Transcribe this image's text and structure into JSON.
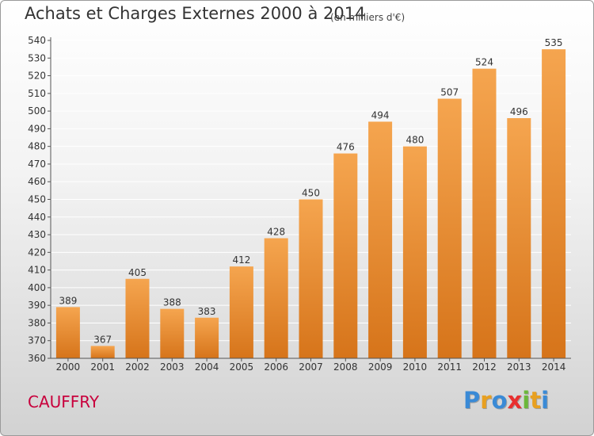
{
  "chart_data": {
    "type": "bar",
    "title": "Achats et Charges Externes 2000 à 2014",
    "subtitle": "(en milliers d'€)",
    "xlabel": "",
    "ylabel": "",
    "categories": [
      "2000",
      "2001",
      "2002",
      "2003",
      "2004",
      "2005",
      "2006",
      "2007",
      "2008",
      "2009",
      "2010",
      "2011",
      "2012",
      "2013",
      "2014"
    ],
    "values": [
      389,
      367,
      405,
      388,
      383,
      412,
      428,
      450,
      476,
      494,
      480,
      507,
      524,
      496,
      535
    ],
    "data_labels": [
      "389",
      "367",
      "405",
      "388",
      "383",
      "412",
      "428",
      "450",
      "476",
      "494",
      "480",
      "507",
      "524",
      "496",
      "535"
    ],
    "ylim": [
      360,
      540
    ],
    "yticks": [
      360,
      370,
      380,
      390,
      400,
      410,
      420,
      430,
      440,
      450,
      460,
      470,
      480,
      490,
      500,
      510,
      520,
      530,
      540
    ],
    "grid": true,
    "legend": "none",
    "colors": {
      "bar_top": "#f5a54f",
      "bar_bottom": "#d6741a",
      "grid": "#ffffff"
    }
  },
  "footer": {
    "commune": "CAUFFRY",
    "brand_letters": [
      {
        "ch": "P",
        "color": "#3a8ad6"
      },
      {
        "ch": "r",
        "color": "#e8a020"
      },
      {
        "ch": "o",
        "color": "#3a8ad6"
      },
      {
        "ch": "x",
        "color": "#e83030"
      },
      {
        "ch": "i",
        "color": "#6bb83a"
      },
      {
        "ch": "t",
        "color": "#e8a020"
      },
      {
        "ch": "i",
        "color": "#3a8ad6"
      }
    ]
  }
}
